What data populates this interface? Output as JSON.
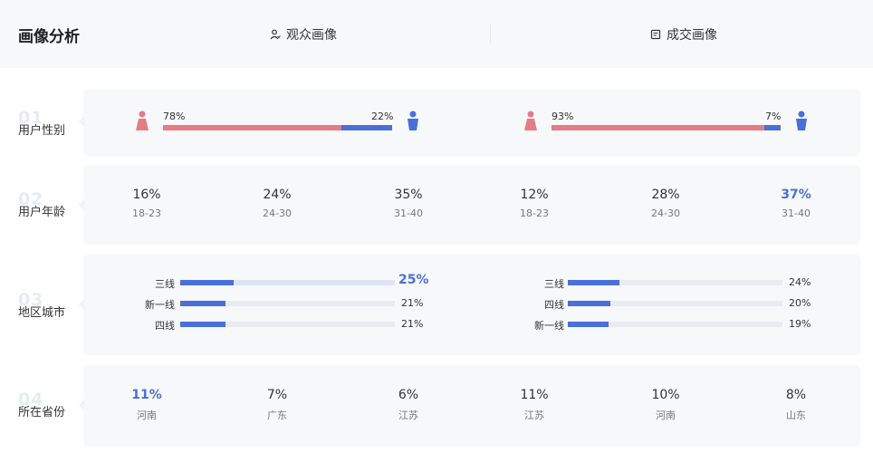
{
  "header": {
    "title": "画像分析",
    "tabs": [
      {
        "label": "观众画像",
        "icon": "person-icon"
      },
      {
        "label": "成交画像",
        "icon": "deal-icon"
      }
    ]
  },
  "colors": {
    "female": "#e47c87",
    "male": "#4a6fd8",
    "accent": "#4a6fd8"
  },
  "rows": [
    {
      "num": "01",
      "label": "用户性别"
    },
    {
      "num": "02",
      "label": "用户年龄"
    },
    {
      "num": "03",
      "label": "地区城市"
    },
    {
      "num": "04",
      "label": "所在省份"
    }
  ],
  "gender": {
    "audience": {
      "female_label": "78%",
      "male_label": "22%",
      "female": 78
    },
    "deal": {
      "female_label": "93%",
      "male_label": "7%",
      "female": 93
    }
  },
  "age": {
    "audience": [
      {
        "value": "16%",
        "label": "18-23"
      },
      {
        "value": "24%",
        "label": "24-30"
      },
      {
        "value": "35%",
        "label": "31-40"
      }
    ],
    "deal": [
      {
        "value": "12%",
        "label": "18-23"
      },
      {
        "value": "28%",
        "label": "24-30"
      },
      {
        "value": "37%",
        "label": "31-40",
        "highlight": true
      }
    ]
  },
  "city": {
    "audience": [
      {
        "name": "三线",
        "value": "25%",
        "pct": 25,
        "highlight": true
      },
      {
        "name": "新一线",
        "value": "21%",
        "pct": 21
      },
      {
        "name": "四线",
        "value": "21%",
        "pct": 21
      }
    ],
    "deal": [
      {
        "name": "三线",
        "value": "24%",
        "pct": 24
      },
      {
        "name": "四线",
        "value": "20%",
        "pct": 20
      },
      {
        "name": "新一线",
        "value": "19%",
        "pct": 19
      }
    ]
  },
  "province": {
    "audience": [
      {
        "value": "11%",
        "label": "河南",
        "highlight": true
      },
      {
        "value": "7%",
        "label": "广东"
      },
      {
        "value": "6%",
        "label": "江苏"
      }
    ],
    "deal": [
      {
        "value": "11%",
        "label": "江苏"
      },
      {
        "value": "10%",
        "label": "河南"
      },
      {
        "value": "8%",
        "label": "山东"
      }
    ]
  }
}
